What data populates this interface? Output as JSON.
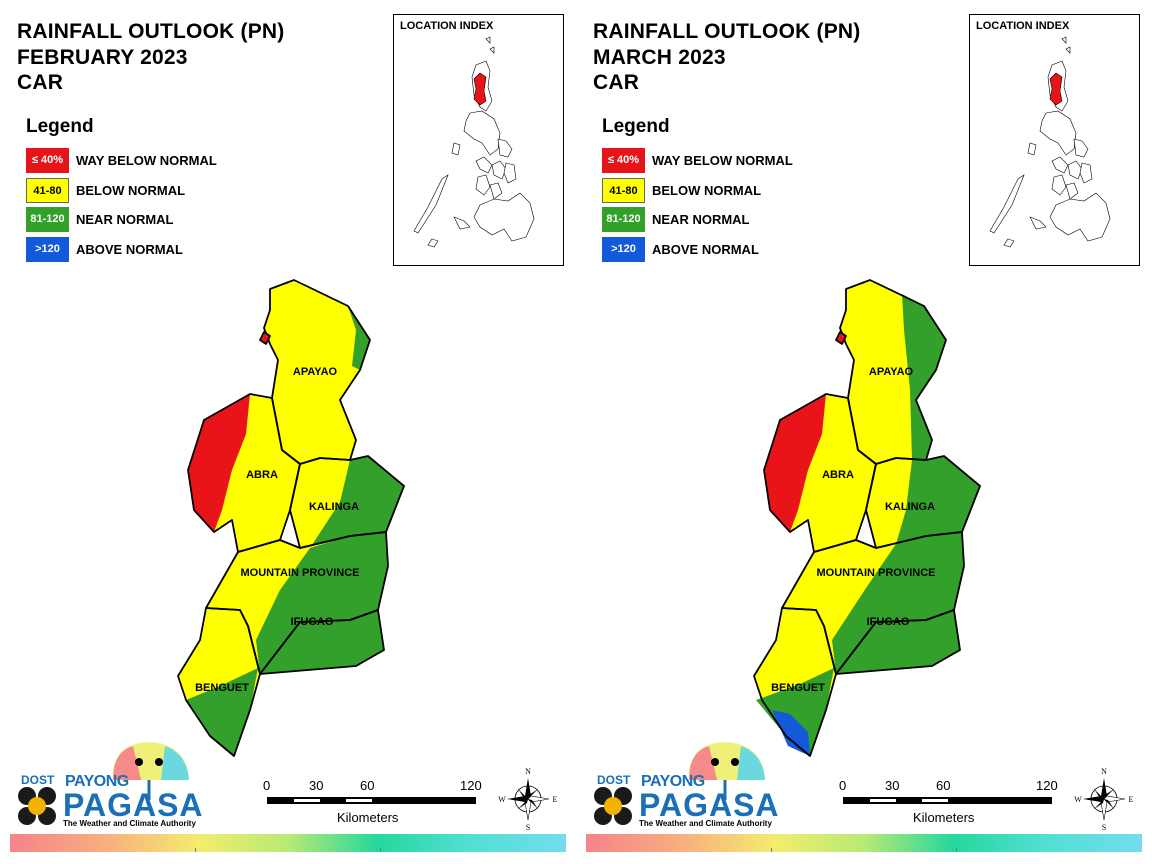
{
  "panels": [
    {
      "title": "RAINFALL OUTLOOK (PN)",
      "month": "FEBRUARY 2023",
      "region": "CAR",
      "legend": {
        "heading": "Legend",
        "items": [
          {
            "range": "≤ 40%",
            "label": "WAY BELOW NORMAL",
            "color": "#e8141a"
          },
          {
            "range": "41-80",
            "label": "BELOW NORMAL",
            "color": "#ffff00"
          },
          {
            "range": "81-120",
            "label": "NEAR NORMAL",
            "color": "#33a02c"
          },
          {
            "range": ">120",
            "label": "ABOVE NORMAL",
            "color": "#1459d9"
          }
        ]
      },
      "location_index": "LOCATION INDEX",
      "provinces": [
        {
          "name": "APAYAO",
          "category": "BELOW NORMAL",
          "secondary": "NEAR NORMAL (east edge)"
        },
        {
          "name": "ABRA",
          "category": "BELOW NORMAL",
          "secondary": "WAY BELOW NORMAL (west)"
        },
        {
          "name": "KALINGA",
          "category": "BELOW NORMAL",
          "secondary": "NEAR NORMAL (east)"
        },
        {
          "name": "MOUNTAIN PROVINCE",
          "category": "BELOW NORMAL",
          "secondary": "NEAR NORMAL (east)"
        },
        {
          "name": "IFUGAO",
          "category": "NEAR NORMAL",
          "secondary": "BELOW NORMAL (west)"
        },
        {
          "name": "BENGUET",
          "category": "BELOW NORMAL",
          "secondary": "NEAR NORMAL (south)"
        }
      ],
      "scale": {
        "ticks": [
          "0",
          "30",
          "60",
          "120"
        ],
        "unit": "Kilometers"
      },
      "compass": {
        "n": "N",
        "e": "E",
        "s": "S",
        "w": "W"
      },
      "logo": {
        "dost": "DOST",
        "payong": "PAYONG",
        "pagasa": "PAGASA",
        "tagline": "The Weather and Climate Authority"
      }
    },
    {
      "title": "RAINFALL OUTLOOK (PN)",
      "month": "MARCH 2023",
      "region": "CAR",
      "legend": {
        "heading": "Legend",
        "items": [
          {
            "range": "≤ 40%",
            "label": "WAY BELOW NORMAL",
            "color": "#e8141a"
          },
          {
            "range": "41-80",
            "label": "BELOW NORMAL",
            "color": "#ffff00"
          },
          {
            "range": "81-120",
            "label": "NEAR NORMAL",
            "color": "#33a02c"
          },
          {
            "range": ">120",
            "label": "ABOVE NORMAL",
            "color": "#1459d9"
          }
        ]
      },
      "location_index": "LOCATION INDEX",
      "provinces": [
        {
          "name": "APAYAO",
          "category": "BELOW NORMAL",
          "secondary": "NEAR NORMAL (east)"
        },
        {
          "name": "ABRA",
          "category": "BELOW NORMAL",
          "secondary": "WAY BELOW NORMAL (west)"
        },
        {
          "name": "KALINGA",
          "category": "NEAR NORMAL",
          "secondary": "BELOW NORMAL (west)"
        },
        {
          "name": "MOUNTAIN PROVINCE",
          "category": "NEAR NORMAL",
          "secondary": "BELOW NORMAL (west)"
        },
        {
          "name": "IFUGAO",
          "category": "NEAR NORMAL",
          "secondary": "BELOW NORMAL (west)"
        },
        {
          "name": "BENGUET",
          "category": "BELOW NORMAL",
          "secondary": "NEAR NORMAL and ABOVE NORMAL (south)"
        }
      ],
      "scale": {
        "ticks": [
          "0",
          "30",
          "60",
          "120"
        ],
        "unit": "Kilometers"
      },
      "compass": {
        "n": "N",
        "e": "E",
        "s": "S",
        "w": "W"
      },
      "logo": {
        "dost": "DOST",
        "payong": "PAYONG",
        "pagasa": "PAGASA",
        "tagline": "The Weather and Climate Authority"
      }
    }
  ]
}
